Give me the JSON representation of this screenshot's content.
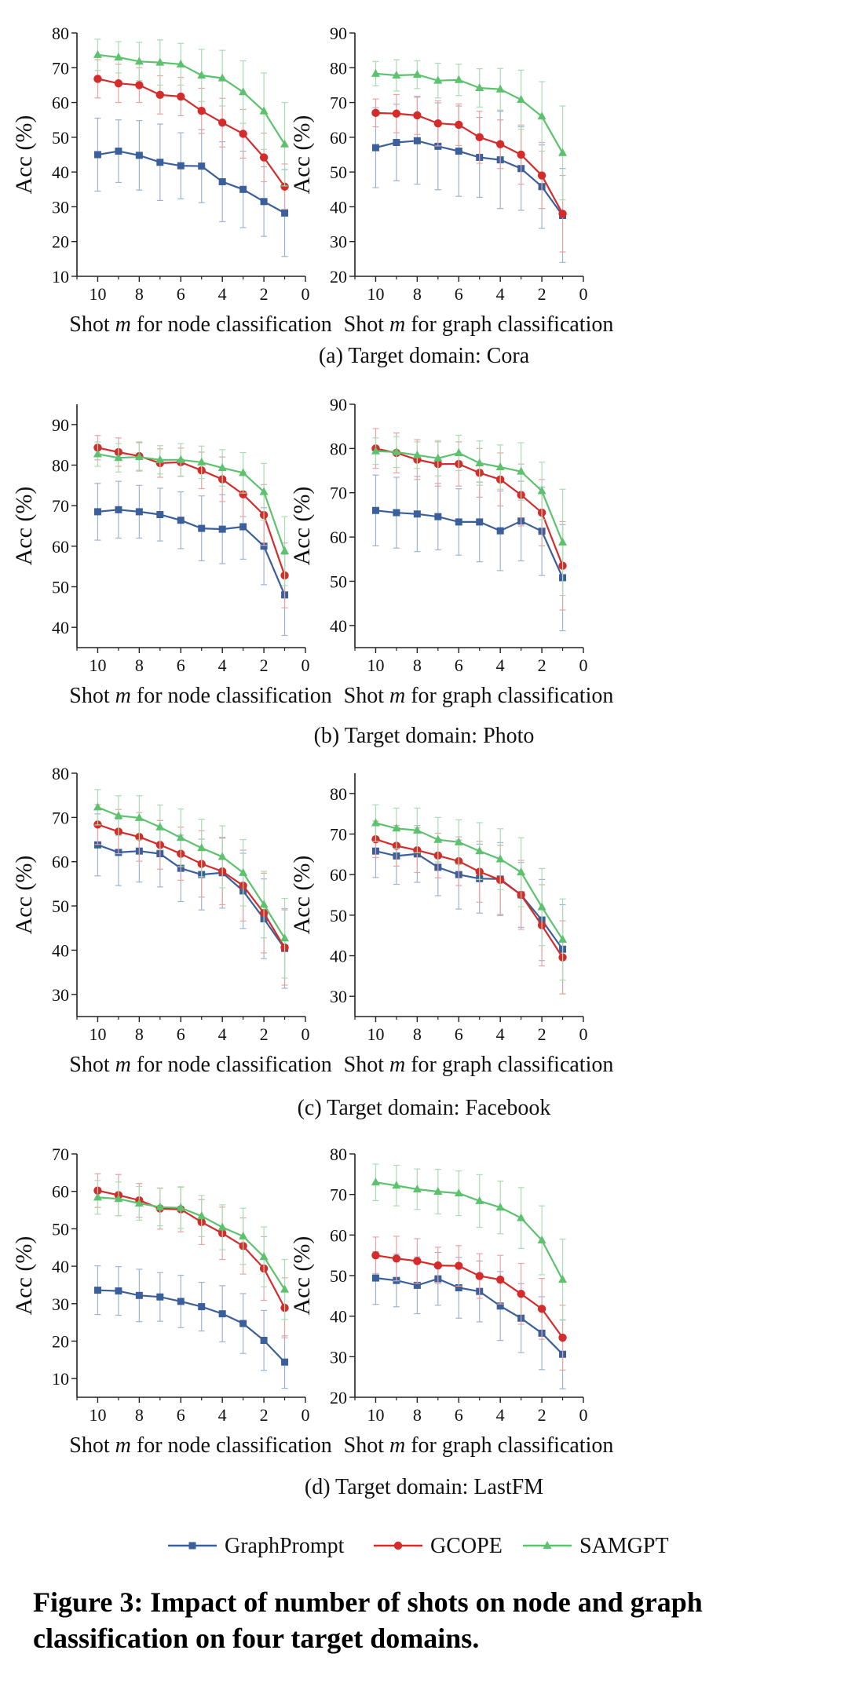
{
  "figure": {
    "caption": "Figure 3: Impact of number of shots on node and graph classification on four target domains."
  },
  "colors": {
    "GraphPrompt": "#3b5f9a",
    "GCOPE": "#d42b2b",
    "SAMGPT": "#5cc26e",
    "GraphPrompt_err": "#9db3d3",
    "GCOPE_err": "#e8a3a3",
    "SAMGPT_err": "#a9dcb3"
  },
  "legend": {
    "items": [
      "GraphPrompt",
      "GCOPE",
      "SAMGPT"
    ],
    "placement": "bottom-center"
  },
  "subcaptions": [
    "(a) Target domain: Cora",
    "(b) Target domain: Photo",
    "(c) Target domain: Facebook",
    "(d) Target domain: LastFM"
  ],
  "chart_data": [
    {
      "type": "line",
      "panel": "(a)",
      "task": "node",
      "ylabel": "Acc (%)",
      "xlabel_parts": [
        "Shot ",
        "m",
        " for node classification"
      ],
      "ylim": [
        10,
        80
      ],
      "yticks": [
        10,
        20,
        30,
        40,
        50,
        60,
        70,
        80
      ],
      "xlim": [
        11,
        0
      ],
      "xticks": [
        10,
        8,
        6,
        4,
        2,
        0
      ],
      "x": [
        10,
        9,
        8,
        7,
        6,
        5,
        4,
        3,
        2,
        1
      ],
      "series": [
        {
          "name": "GraphPrompt",
          "marker": "square",
          "values": [
            45.0,
            46.0,
            44.8,
            42.8,
            41.8,
            41.7,
            37.2,
            35.0,
            31.5,
            28.2
          ],
          "err": [
            10.5,
            9.0,
            10.0,
            11.0,
            9.5,
            10.5,
            11.5,
            11.0,
            10.0,
            12.5
          ]
        },
        {
          "name": "GCOPE",
          "marker": "circle",
          "values": [
            66.8,
            65.5,
            65.0,
            62.2,
            61.7,
            57.6,
            54.2,
            51.0,
            44.2,
            35.8
          ],
          "err": [
            5.5,
            5.5,
            5.0,
            5.5,
            5.5,
            6.5,
            7.0,
            7.0,
            7.0,
            6.5
          ]
        },
        {
          "name": "SAMGPT",
          "marker": "triangle",
          "values": [
            73.7,
            73.0,
            71.8,
            71.5,
            71.0,
            67.8,
            67.0,
            63.0,
            57.5,
            48.0
          ],
          "err": [
            4.5,
            4.5,
            5.5,
            6.5,
            6.0,
            7.5,
            8.0,
            9.0,
            11.0,
            12.0
          ]
        }
      ]
    },
    {
      "type": "line",
      "panel": "(a)",
      "task": "graph",
      "ylabel": "Acc (%)",
      "xlabel_parts": [
        "Shot ",
        "m",
        " for graph classification"
      ],
      "ylim": [
        20,
        90
      ],
      "yticks": [
        20,
        30,
        40,
        50,
        60,
        70,
        80,
        90
      ],
      "xlim": [
        11,
        0
      ],
      "xticks": [
        10,
        8,
        6,
        4,
        2,
        0
      ],
      "x": [
        10,
        9,
        8,
        7,
        6,
        5,
        4,
        3,
        2,
        1
      ],
      "series": [
        {
          "name": "GraphPrompt",
          "marker": "square",
          "values": [
            57.0,
            58.5,
            59.0,
            57.4,
            56.0,
            54.2,
            53.5,
            51.0,
            45.8,
            37.5
          ],
          "err": [
            11.5,
            11.0,
            12.5,
            12.5,
            13.0,
            11.5,
            14.0,
            12.0,
            12.0,
            13.5
          ]
        },
        {
          "name": "GCOPE",
          "marker": "circle",
          "values": [
            67.0,
            66.8,
            66.3,
            64.0,
            63.6,
            60.0,
            58.0,
            55.0,
            49.0,
            38.0
          ],
          "err": [
            4.0,
            5.5,
            5.5,
            6.5,
            6.0,
            7.5,
            7.0,
            8.5,
            9.5,
            11.0
          ]
        },
        {
          "name": "SAMGPT",
          "marker": "triangle",
          "values": [
            78.3,
            77.8,
            78.0,
            76.3,
            76.5,
            74.2,
            73.8,
            70.8,
            66.0,
            55.5
          ],
          "err": [
            3.5,
            4.5,
            4.0,
            5.0,
            4.5,
            5.5,
            6.0,
            8.5,
            10.0,
            13.5
          ]
        }
      ]
    },
    {
      "type": "line",
      "panel": "(b)",
      "task": "node",
      "ylabel": "Acc (%)",
      "xlabel_parts": [
        "Shot ",
        "m",
        " for node classification"
      ],
      "ylim": [
        35,
        95
      ],
      "yticks": [
        40,
        50,
        60,
        70,
        80,
        90
      ],
      "xlim": [
        11,
        0
      ],
      "xticks": [
        10,
        8,
        6,
        4,
        2,
        0
      ],
      "x": [
        10,
        9,
        8,
        7,
        6,
        5,
        4,
        3,
        2,
        1
      ],
      "series": [
        {
          "name": "GraphPrompt",
          "marker": "square",
          "values": [
            68.5,
            69.0,
            68.5,
            67.8,
            66.4,
            64.4,
            64.2,
            64.8,
            60.0,
            48.0
          ],
          "err": [
            7.0,
            7.0,
            6.5,
            6.5,
            7.0,
            8.0,
            8.5,
            8.0,
            9.5,
            10.0
          ]
        },
        {
          "name": "GCOPE",
          "marker": "circle",
          "values": [
            84.3,
            83.2,
            82.2,
            80.5,
            80.7,
            78.7,
            76.5,
            72.8,
            67.7,
            52.8
          ],
          "err": [
            3.0,
            3.5,
            3.5,
            3.5,
            3.5,
            4.5,
            5.5,
            5.5,
            7.5,
            8.0
          ]
        },
        {
          "name": "SAMGPT",
          "marker": "triangle",
          "values": [
            82.7,
            81.8,
            82.0,
            81.3,
            81.3,
            80.7,
            79.3,
            78.1,
            73.4,
            58.8
          ],
          "err": [
            3.0,
            3.5,
            3.5,
            3.5,
            4.0,
            4.0,
            4.5,
            5.0,
            7.0,
            8.5
          ]
        }
      ]
    },
    {
      "type": "line",
      "panel": "(b)",
      "task": "graph",
      "ylabel": "Acc (%)",
      "xlabel_parts": [
        "Shot ",
        "m",
        " for graph classification"
      ],
      "ylim": [
        35,
        90
      ],
      "yticks": [
        40,
        50,
        60,
        70,
        80,
        90
      ],
      "xlim": [
        11,
        0
      ],
      "xticks": [
        10,
        8,
        6,
        4,
        2,
        0
      ],
      "x": [
        10,
        9,
        8,
        7,
        6,
        5,
        4,
        3,
        2,
        1
      ],
      "series": [
        {
          "name": "GraphPrompt",
          "marker": "square",
          "values": [
            66.0,
            65.5,
            65.2,
            64.6,
            63.4,
            63.4,
            61.4,
            63.6,
            61.3,
            50.8
          ],
          "err": [
            8.0,
            8.0,
            8.5,
            7.5,
            7.5,
            9.0,
            9.0,
            9.0,
            10.0,
            12.0
          ]
        },
        {
          "name": "GCOPE",
          "marker": "circle",
          "values": [
            80.0,
            79.0,
            77.5,
            76.5,
            76.5,
            74.5,
            73.0,
            69.5,
            65.5,
            53.5
          ],
          "err": [
            4.5,
            4.5,
            4.5,
            5.0,
            5.0,
            5.5,
            6.0,
            7.0,
            7.5,
            10.0
          ]
        },
        {
          "name": "SAMGPT",
          "marker": "triangle",
          "values": [
            79.4,
            79.2,
            78.5,
            77.8,
            79.0,
            76.7,
            75.8,
            74.8,
            70.4,
            58.8
          ],
          "err": [
            3.0,
            3.5,
            3.0,
            4.0,
            4.0,
            5.0,
            5.0,
            6.5,
            6.5,
            12.0
          ]
        }
      ]
    },
    {
      "type": "line",
      "panel": "(c)",
      "task": "node",
      "ylabel": "Acc (%)",
      "xlabel_parts": [
        "Shot ",
        "m",
        " for node classification"
      ],
      "ylim": [
        25,
        80
      ],
      "yticks": [
        30,
        40,
        50,
        60,
        70,
        80
      ],
      "xlim": [
        11,
        0
      ],
      "xticks": [
        10,
        8,
        6,
        4,
        2,
        0
      ],
      "x": [
        10,
        9,
        8,
        7,
        6,
        5,
        4,
        3,
        2,
        1
      ],
      "series": [
        {
          "name": "GraphPrompt",
          "marker": "square",
          "values": [
            63.8,
            62.1,
            62.4,
            61.8,
            58.5,
            57.1,
            57.5,
            53.4,
            47.1,
            40.4
          ],
          "err": [
            7.0,
            7.5,
            7.0,
            7.5,
            7.5,
            8.0,
            8.0,
            8.5,
            9.0,
            9.0
          ]
        },
        {
          "name": "GCOPE",
          "marker": "circle",
          "values": [
            68.4,
            66.8,
            65.6,
            63.8,
            61.8,
            59.5,
            57.8,
            54.6,
            48.4,
            40.6
          ],
          "err": [
            4.5,
            5.0,
            5.5,
            5.5,
            6.0,
            7.5,
            7.5,
            8.0,
            9.0,
            8.5
          ]
        },
        {
          "name": "SAMGPT",
          "marker": "triangle",
          "values": [
            72.3,
            70.4,
            69.9,
            67.8,
            65.4,
            63.1,
            61.1,
            57.5,
            50.3,
            42.7
          ],
          "err": [
            4.0,
            4.5,
            5.0,
            5.0,
            6.5,
            6.5,
            7.0,
            7.5,
            7.5,
            9.0
          ]
        }
      ]
    },
    {
      "type": "line",
      "panel": "(c)",
      "task": "graph",
      "ylabel": "Acc (%)",
      "xlabel_parts": [
        "Shot ",
        "m",
        " for graph classification"
      ],
      "ylim": [
        25,
        85
      ],
      "yticks": [
        30,
        40,
        50,
        60,
        70,
        80
      ],
      "xlim": [
        11,
        0
      ],
      "xticks": [
        10,
        8,
        6,
        4,
        2,
        0
      ],
      "x": [
        10,
        9,
        8,
        7,
        6,
        5,
        4,
        3,
        2,
        1
      ],
      "series": [
        {
          "name": "GraphPrompt",
          "marker": "square",
          "values": [
            65.8,
            64.6,
            65.1,
            61.8,
            60.0,
            59.0,
            58.9,
            55.0,
            48.8,
            41.6
          ],
          "err": [
            6.5,
            7.0,
            7.0,
            7.0,
            8.5,
            8.5,
            9.0,
            8.0,
            10.0,
            11.0
          ]
        },
        {
          "name": "GCOPE",
          "marker": "circle",
          "values": [
            68.7,
            67.1,
            66.0,
            64.7,
            63.3,
            60.7,
            58.7,
            55.0,
            47.5,
            39.6
          ],
          "err": [
            4.5,
            5.0,
            5.5,
            5.5,
            6.0,
            7.5,
            8.5,
            8.5,
            10.0,
            9.0
          ]
        },
        {
          "name": "SAMGPT",
          "marker": "triangle",
          "values": [
            72.7,
            71.4,
            70.9,
            68.6,
            68.0,
            65.8,
            63.8,
            60.6,
            52.0,
            44.0
          ],
          "err": [
            4.5,
            5.0,
            5.5,
            5.5,
            5.5,
            7.0,
            7.5,
            8.5,
            9.5,
            10.0
          ]
        }
      ]
    },
    {
      "type": "line",
      "panel": "(d)",
      "task": "node",
      "ylabel": "Acc (%)",
      "xlabel_parts": [
        "Shot ",
        "m",
        " for node classification"
      ],
      "ylim": [
        5,
        70
      ],
      "yticks": [
        10,
        20,
        30,
        40,
        50,
        60,
        70
      ],
      "xlim": [
        11,
        0
      ],
      "xticks": [
        10,
        8,
        6,
        4,
        2,
        0
      ],
      "x": [
        10,
        9,
        8,
        7,
        6,
        5,
        4,
        3,
        2,
        1
      ],
      "series": [
        {
          "name": "GraphPrompt",
          "marker": "square",
          "values": [
            33.6,
            33.4,
            32.2,
            31.8,
            30.6,
            29.2,
            27.3,
            24.7,
            20.2,
            14.4
          ],
          "err": [
            6.5,
            6.5,
            7.0,
            6.5,
            7.0,
            6.5,
            7.5,
            8.0,
            8.0,
            7.0
          ]
        },
        {
          "name": "GCOPE",
          "marker": "circle",
          "values": [
            60.2,
            59.0,
            57.6,
            55.4,
            55.2,
            51.8,
            48.8,
            45.4,
            39.4,
            28.9
          ],
          "err": [
            4.5,
            5.5,
            4.5,
            5.5,
            6.0,
            6.0,
            7.0,
            7.5,
            8.5,
            8.0
          ]
        },
        {
          "name": "SAMGPT",
          "marker": "triangle",
          "values": [
            58.4,
            58.0,
            56.8,
            55.8,
            55.6,
            53.4,
            50.4,
            48.0,
            42.5,
            33.8
          ],
          "err": [
            4.5,
            4.5,
            4.5,
            5.0,
            5.5,
            5.5,
            6.0,
            7.5,
            8.0,
            8.0
          ]
        }
      ]
    },
    {
      "type": "line",
      "panel": "(d)",
      "task": "graph",
      "ylabel": "Acc (%)",
      "xlabel_parts": [
        "Shot ",
        "m",
        " for graph classification"
      ],
      "ylim": [
        20,
        80
      ],
      "yticks": [
        20,
        30,
        40,
        50,
        60,
        70,
        80
      ],
      "xlim": [
        11,
        0
      ],
      "xticks": [
        10,
        8,
        6,
        4,
        2,
        0
      ],
      "x": [
        10,
        9,
        8,
        7,
        6,
        5,
        4,
        3,
        2,
        1
      ],
      "series": [
        {
          "name": "GraphPrompt",
          "marker": "square",
          "values": [
            49.4,
            48.8,
            47.6,
            49.2,
            47.0,
            46.1,
            42.5,
            39.5,
            35.8,
            30.6
          ],
          "err": [
            6.5,
            6.5,
            7.0,
            6.5,
            7.5,
            7.5,
            8.5,
            8.5,
            9.0,
            8.5
          ]
        },
        {
          "name": "GCOPE",
          "marker": "circle",
          "values": [
            55.0,
            54.2,
            53.6,
            52.5,
            52.4,
            49.9,
            49.0,
            45.5,
            41.8,
            34.7
          ],
          "err": [
            4.5,
            5.5,
            5.5,
            4.5,
            5.0,
            5.5,
            6.0,
            7.5,
            7.5,
            8.0
          ]
        },
        {
          "name": "SAMGPT",
          "marker": "triangle",
          "values": [
            73.0,
            72.2,
            71.3,
            70.7,
            70.3,
            68.4,
            66.8,
            64.2,
            58.7,
            49.0
          ],
          "err": [
            4.5,
            5.0,
            5.0,
            5.5,
            5.5,
            6.5,
            6.5,
            7.5,
            8.5,
            10.0
          ]
        }
      ]
    }
  ]
}
